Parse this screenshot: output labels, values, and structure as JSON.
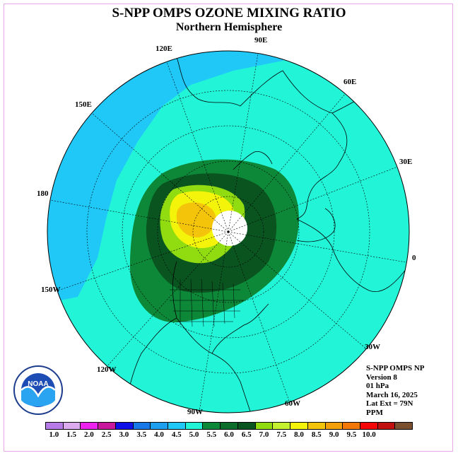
{
  "title": "S-NPP OMPS OZONE MIXING RATIO",
  "subtitle": "Northern Hemisphere",
  "info": {
    "line1": "S-NPP OMPS NP",
    "line2": "Version 8",
    "line3": "01 hPa",
    "line4": "March 16, 2025",
    "line5": "Lat Ext = 79N",
    "line6": "PPM"
  },
  "longitude_labels": {
    "e90": "90E",
    "e60": "60E",
    "e30": "30E",
    "zero": "0",
    "w30": "30W",
    "w60": "60W",
    "w90": "90W",
    "w120": "120W",
    "w150": "150W",
    "d180": "180",
    "e150": "150E",
    "e120": "120E"
  },
  "colorbar": {
    "colors": [
      "#b67be8",
      "#dcaaee",
      "#ee22ee",
      "#c8189c",
      "#1010e8",
      "#1878e8",
      "#1ea0f0",
      "#20c8f8",
      "#22f4d8",
      "#0c8838",
      "#0c6e2a",
      "#0a5420",
      "#90dc10",
      "#c4f030",
      "#f4f40a",
      "#f4c40a",
      "#f4a00a",
      "#f47808",
      "#f40808",
      "#c01010",
      "#7a5030"
    ],
    "ticks": [
      "1.0",
      "1.5",
      "2.0",
      "2.5",
      "3.0",
      "3.5",
      "4.0",
      "4.5",
      "5.0",
      "5.5",
      "6.0",
      "6.5",
      "7.0",
      "7.5",
      "8.0",
      "8.5",
      "9.0",
      "9.5",
      "10.0"
    ]
  },
  "map_colors": {
    "background": "#22f4d8",
    "low_region": "#20c8f8",
    "ring_outer": "#0c8838",
    "ring_mid": "#0a5420",
    "ring_green": "#90dc10",
    "ring_yellow": "#f4f40a",
    "core": "#f4c40a",
    "missing": "#ffffff"
  },
  "logo": {
    "text": "NOAA"
  }
}
